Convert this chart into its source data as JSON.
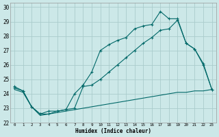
{
  "xlabel": "Humidex (Indice chaleur)",
  "xlim": [
    -0.5,
    23.5
  ],
  "ylim": [
    22,
    30.3
  ],
  "yticks": [
    22,
    23,
    24,
    25,
    26,
    27,
    28,
    29,
    30
  ],
  "xticks": [
    0,
    1,
    2,
    3,
    4,
    5,
    6,
    7,
    8,
    9,
    10,
    11,
    12,
    13,
    14,
    15,
    16,
    17,
    18,
    19,
    20,
    21,
    22,
    23
  ],
  "bg_color": "#cce8e8",
  "grid_color": "#aacccc",
  "line_color": "#006868",
  "line1_x": [
    0,
    1,
    2,
    3,
    4,
    5,
    6,
    7,
    8,
    9,
    10,
    11,
    12,
    13,
    14,
    15,
    16,
    17,
    18,
    19,
    20,
    21,
    22,
    23
  ],
  "line1_y": [
    24.5,
    24.2,
    23.1,
    22.6,
    22.6,
    22.8,
    22.9,
    24.0,
    24.6,
    25.5,
    27.0,
    27.4,
    27.7,
    27.9,
    28.5,
    28.7,
    28.8,
    29.7,
    29.2,
    29.2,
    27.5,
    27.1,
    26.0,
    24.3
  ],
  "line2_x": [
    0,
    1,
    2,
    3,
    4,
    5,
    6,
    7,
    8,
    9,
    10,
    11,
    12,
    13,
    14,
    15,
    16,
    17,
    18,
    19,
    20,
    21,
    22,
    23
  ],
  "line2_y": [
    24.4,
    24.2,
    23.1,
    22.6,
    22.8,
    22.8,
    22.9,
    23.0,
    24.5,
    24.6,
    25.0,
    25.5,
    26.0,
    26.5,
    27.0,
    27.5,
    27.9,
    28.4,
    28.5,
    29.1,
    27.5,
    27.1,
    26.1,
    24.3
  ],
  "line3_x": [
    0,
    1,
    2,
    3,
    4,
    5,
    6,
    7,
    8,
    9,
    10,
    11,
    12,
    13,
    14,
    15,
    16,
    17,
    18,
    19,
    20,
    21,
    22,
    23
  ],
  "line3_y": [
    24.3,
    24.1,
    23.1,
    22.5,
    22.6,
    22.7,
    22.8,
    22.9,
    23.0,
    23.1,
    23.2,
    23.3,
    23.4,
    23.5,
    23.6,
    23.7,
    23.8,
    23.9,
    24.0,
    24.1,
    24.1,
    24.2,
    24.2,
    24.3
  ]
}
